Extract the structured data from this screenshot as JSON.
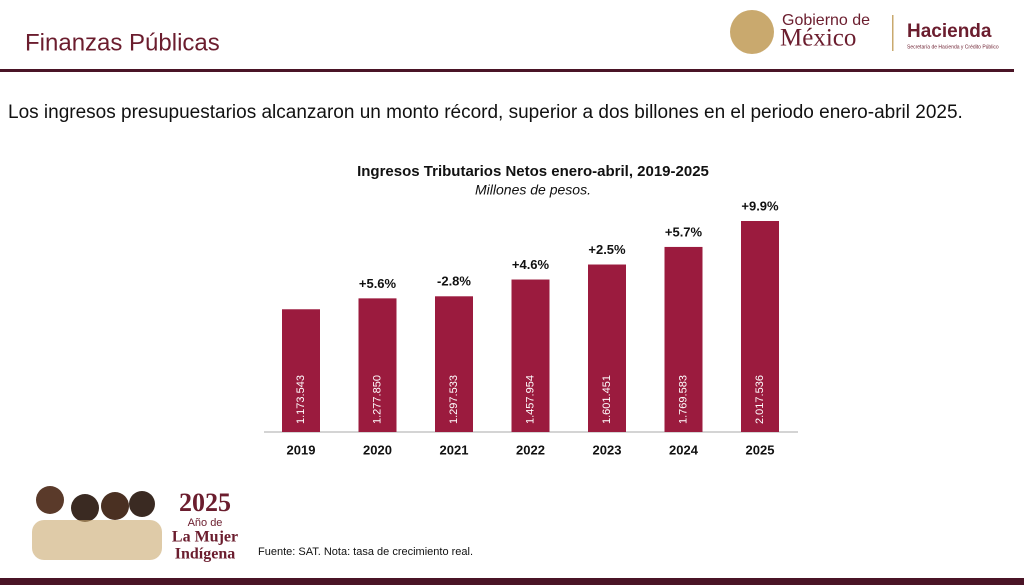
{
  "header": {
    "title": "Finanzas Públicas",
    "logo_top": "Gobierno de",
    "logo_main": "México",
    "agency": "Hacienda",
    "agency_sub": "Secretaría de Hacienda y Crédito Público"
  },
  "intro": "Los ingresos presupuestarios alcanzaron un monto récord, superior a dos billones en el periodo enero-abril 2025.",
  "chart_data": {
    "type": "bar",
    "title": "Ingresos Tributarios Netos enero-abril, 2019-2025",
    "subtitle": "Millones de pesos.",
    "categories": [
      "2019",
      "2020",
      "2021",
      "2022",
      "2023",
      "2024",
      "2025"
    ],
    "values": [
      1173543,
      1277850,
      1297533,
      1457954,
      1601451,
      1769583,
      2017536
    ],
    "value_labels": [
      "1.173.543",
      "1.277.850",
      "1.297.533",
      "1.457.954",
      "1.601.451",
      "1.769.583",
      "2.017.536"
    ],
    "annotations": [
      null,
      "+5.6%",
      "-2.8%",
      "+4.6%",
      "+2.5%",
      "+5.7%",
      "+9.9%"
    ],
    "color": "#9b1b3e"
  },
  "footnote": "Fuente: SAT. Nota: tasa de crecimiento real.",
  "badge": {
    "year": "2025",
    "line1": "Año de",
    "line2": "La Mujer",
    "line3": "Indígena"
  }
}
